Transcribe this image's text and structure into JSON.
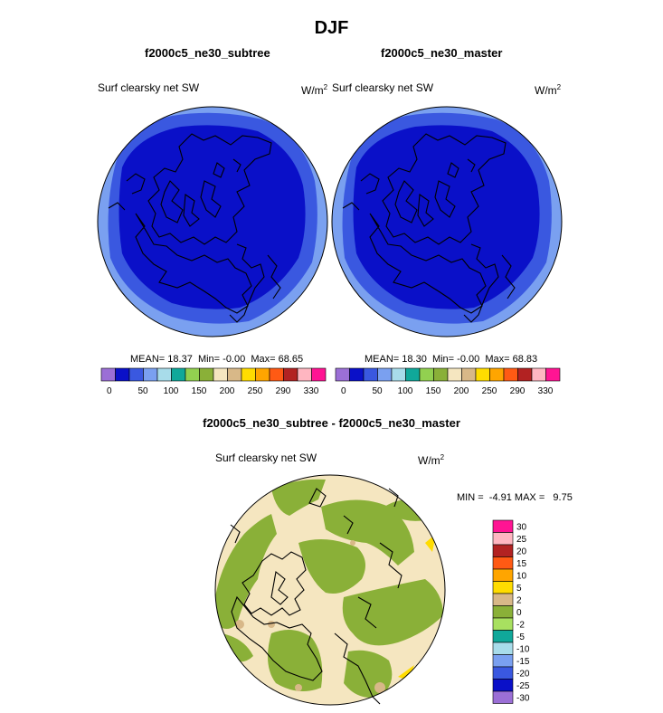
{
  "figure": {
    "title": "DJF"
  },
  "panels": [
    {
      "case": "f2000c5_ne30_subtree",
      "variable": "Surf clearsky net SW",
      "units": "W/m",
      "units_exp": "2",
      "stats": {
        "mean_label": "MEAN=",
        "mean": "18.37",
        "min_label": "Min=",
        "min": "-0.00",
        "max_label": "Max=",
        "max": "68.65"
      }
    },
    {
      "case": "f2000c5_ne30_master",
      "variable": "Surf clearsky net SW",
      "units": "W/m",
      "units_exp": "2",
      "stats": {
        "mean_label": "MEAN=",
        "mean": "18.30",
        "min_label": "Min=",
        "min": "-0.00",
        "max_label": "Max=",
        "max": "68.83"
      }
    },
    {
      "case": "f2000c5_ne30_subtree - f2000c5_ne30_master",
      "variable": "Surf clearsky net SW",
      "units": "W/m",
      "units_exp": "2",
      "stats": {
        "min_label": "MIN =",
        "min": "-4.91",
        "max_label": "MAX =",
        "max": "9.75"
      }
    }
  ],
  "colorbar_main": {
    "colors": [
      "#9b6fd6",
      "#0a10c8",
      "#3a58e0",
      "#7aa0f0",
      "#a8dcea",
      "#10a89a",
      "#92d050",
      "#8ab038",
      "#f5e6c0",
      "#d8b888",
      "#ffdc00",
      "#ffa500",
      "#ff5a14",
      "#b22222",
      "#ffb6c1",
      "#ff1493"
    ],
    "labels": [
      "0",
      "50",
      "100",
      "150",
      "200",
      "250",
      "290",
      "330"
    ]
  },
  "colorbar_diff": {
    "colors": [
      "#ff1493",
      "#ffb6c1",
      "#b22222",
      "#ff5a14",
      "#ffa500",
      "#ffdc00",
      "#d8b888",
      "#8ab038",
      "#a8e060",
      "#10a89a",
      "#a8dcea",
      "#7aa0f0",
      "#3a58e0",
      "#0a10c8",
      "#9b6fd6"
    ],
    "labels": [
      "30",
      "25",
      "20",
      "15",
      "10",
      "5",
      "2",
      "0",
      "-2",
      "-5",
      "-10",
      "-15",
      "-20",
      "-25",
      "-30"
    ]
  },
  "palette": {
    "deep_blue": "#0a10c8",
    "mid_blue": "#3a58e0",
    "light_blue": "#7aa0f0",
    "beige": "#f5e6c0",
    "olive": "#8ab038",
    "tan": "#d8b888",
    "yellow": "#ffdc00",
    "coast": "#000000"
  }
}
